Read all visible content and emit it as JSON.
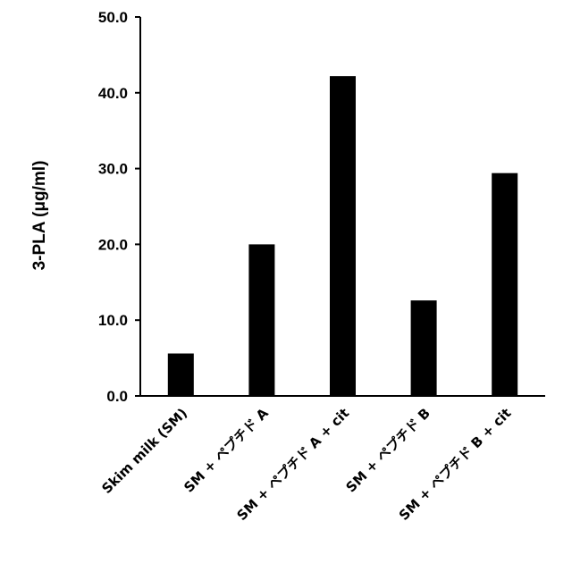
{
  "chart_data": {
    "type": "bar",
    "title": "",
    "xlabel": "",
    "ylabel": "3-PLA (μg/ml)",
    "categories": [
      "Skim milk (SM)",
      "SM + ペプチド A",
      "SM + ペプチド A + cit",
      "SM + ペプチド B",
      "SM + ペプチド B + cit"
    ],
    "values": [
      5.6,
      20.0,
      42.2,
      12.6,
      29.4
    ],
    "ylim": [
      0,
      50
    ],
    "yticks": [
      "0.0",
      "10.0",
      "20.0",
      "30.0",
      "40.0",
      "50.0"
    ],
    "grid": false,
    "legend": "none",
    "bar_color": "#000000"
  }
}
